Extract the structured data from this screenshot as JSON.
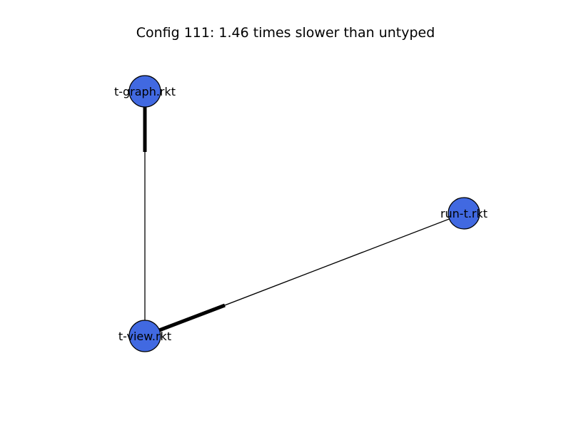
{
  "title": "Config 111: 1.46 times slower than untyped",
  "colors": {
    "node_fill": "#4169e1",
    "node_stroke": "#000000",
    "edge": "#000000",
    "background": "#ffffff"
  },
  "nodes": [
    {
      "id": "t-graph",
      "label": "t-graph.rkt"
    },
    {
      "id": "run-t",
      "label": "run-t.rkt"
    },
    {
      "id": "t-view",
      "label": "t-view.rkt"
    }
  ],
  "edges": [
    {
      "from": "t-view",
      "to": "t-graph",
      "emphasized_end": "t-graph"
    },
    {
      "from": "t-view",
      "to": "run-t",
      "emphasized_end": "t-view"
    }
  ]
}
